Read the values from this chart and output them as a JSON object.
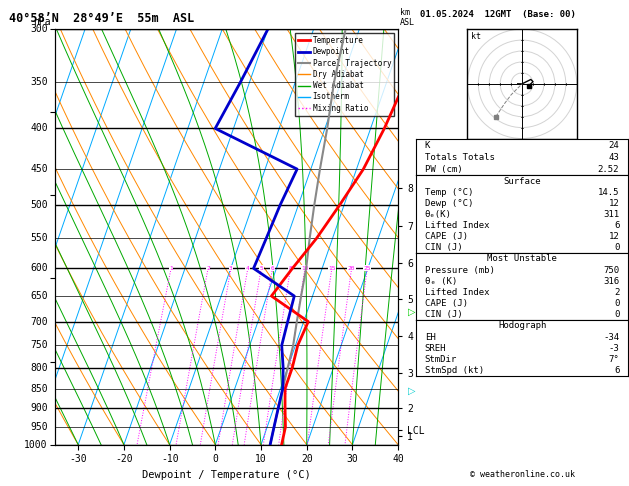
{
  "title_left": "40°58’N  28°49’E  55m  ASL",
  "title_right": "01.05.2024  12GMT  (Base: 00)",
  "xlabel": "Dewpoint / Temperature (°C)",
  "xmin": -35,
  "xmax": 40,
  "pmin": 300,
  "pmax": 1000,
  "skew_factor": 0.42,
  "temp_pressures": [
    300,
    350,
    400,
    450,
    500,
    550,
    600,
    650,
    700,
    750,
    800,
    850,
    900,
    950,
    1000
  ],
  "temp_T": [
    14.5,
    14.0,
    13.0,
    11.5,
    9.0,
    6.5,
    3.5,
    1.0,
    11.0,
    10.5,
    11.0,
    11.0,
    12.5,
    14.0,
    14.5
  ],
  "dewp_T": [
    -20.0,
    -22.0,
    -24.0,
    -3.0,
    -4.0,
    -4.5,
    -5.0,
    6.0,
    6.5,
    7.0,
    9.0,
    10.5,
    11.0,
    11.5,
    12.0
  ],
  "parcel_T": [
    -3.0,
    -1.5,
    0.5,
    2.0,
    3.5,
    5.0,
    6.5,
    7.5,
    8.5,
    9.5,
    10.0,
    10.5,
    11.0,
    11.5,
    12.0
  ],
  "pressure_all": [
    300,
    350,
    400,
    450,
    500,
    550,
    600,
    650,
    700,
    750,
    800,
    850,
    900,
    950,
    1000
  ],
  "pressure_major": [
    300,
    400,
    500,
    600,
    700,
    800,
    900,
    1000
  ],
  "km_values": [
    "1",
    "2",
    "3",
    "4",
    "5",
    "6",
    "7",
    "8"
  ],
  "km_pressures": [
    975,
    900,
    812,
    730,
    655,
    590,
    530,
    476
  ],
  "lcl_pressure": 958,
  "isotherm_temps": [
    -80,
    -70,
    -60,
    -50,
    -40,
    -30,
    -20,
    -10,
    0,
    10,
    20,
    30,
    40,
    50
  ],
  "dry_adiabat_theta": [
    -30,
    -20,
    -10,
    0,
    10,
    20,
    30,
    40,
    50,
    60,
    70,
    80,
    90,
    100,
    110,
    120
  ],
  "wet_adiabat_T0": [
    -30,
    -25,
    -20,
    -15,
    -10,
    -5,
    0,
    5,
    10,
    15,
    20,
    25,
    30,
    35
  ],
  "mix_ratios": [
    1,
    2,
    3,
    4,
    5,
    6,
    8,
    10,
    15,
    20,
    25
  ],
  "temp_color": "#ff0000",
  "dewp_color": "#0000cc",
  "parcel_color": "#888888",
  "dry_color": "#ff8800",
  "wet_color": "#00aa00",
  "iso_color": "#00aaff",
  "mix_color": "#ff00ff",
  "stats_K": "24",
  "stats_TT": "43",
  "stats_PW": "2.52",
  "surf_temp": "14.5",
  "surf_dewp": "12",
  "surf_thetae": "311",
  "surf_li": "6",
  "surf_cape": "12",
  "surf_cin": "0",
  "mu_pres": "750",
  "mu_thetae": "316",
  "mu_li": "2",
  "mu_cape": "0",
  "mu_cin": "0",
  "hodo_EH": "-34",
  "hodo_SREH": "-3",
  "hodo_stmdir": "7°",
  "hodo_stmspd": "6"
}
